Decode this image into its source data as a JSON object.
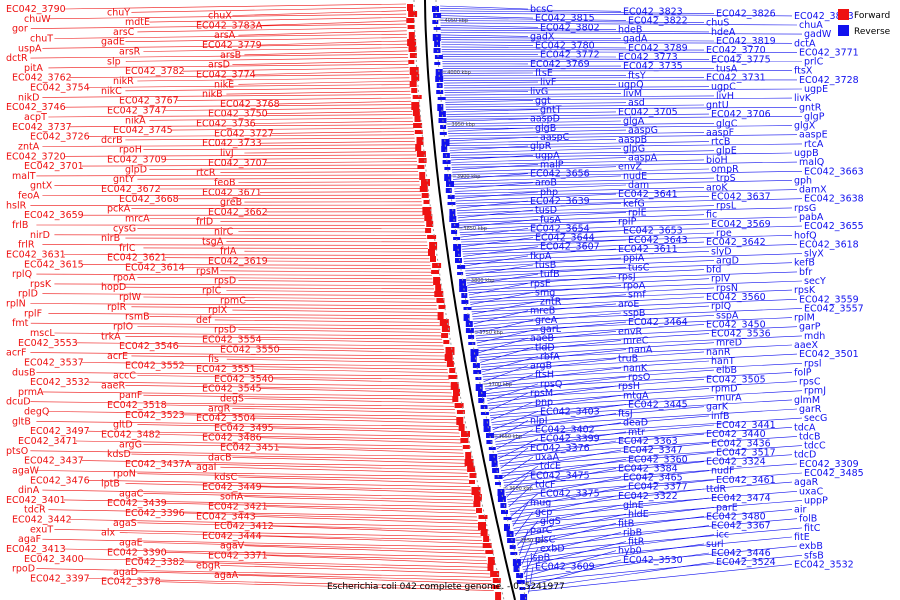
{
  "caption": "Escherichia coli 042 complete genome. - 0..5241977",
  "legend": [
    {
      "label": "Forward",
      "color": "#ee1111"
    },
    {
      "label": "Reverse",
      "color": "#1111ee"
    }
  ],
  "colors": {
    "forward": "#ee1111",
    "reverse": "#1111ee",
    "backbone": "#000000"
  },
  "ticks": [
    "4050 kbp",
    "4000 kbp",
    "3950 kbp",
    "3900 kbp",
    "3850 kbp",
    "3800 kbp",
    "3750 kbp",
    "3700 kbp",
    "3650 kbp",
    "3600 kbp",
    "3550 kbp"
  ],
  "forward_labels": [
    "EC042_3790",
    "chuY",
    "chuX",
    "chuW",
    "mdtE",
    "EC042_3783A",
    "gor",
    "arsC",
    "arsA",
    "chuT",
    "gadE",
    "EC042_3779",
    "uspA",
    "arsR",
    "arsB",
    "dctR",
    "slp",
    "arsD",
    "pitA",
    "EC042_3782",
    "EC042_3774",
    "EC042_3762",
    "nikR",
    "nikE",
    "EC042_3754",
    "nikC",
    "nikB",
    "nikD",
    "EC042_3767",
    "EC042_3768",
    "EC042_3746",
    "EC042_3747",
    "EC042_3750",
    "acpT",
    "nikA",
    "EC042_3736",
    "EC042_3737",
    "EC042_3745",
    "EC042_3727",
    "EC042_3726",
    "dcrB",
    "EC042_3733",
    "zntA",
    "rpoH",
    "livJ",
    "EC042_3720",
    "EC042_3709",
    "EC042_3707",
    "EC042_3701",
    "glpD",
    "rtcR",
    "malT",
    "gntY",
    "feoB",
    "gntX",
    "EC042_3672",
    "EC042_3671",
    "feoA",
    "EC042_3668",
    "greB",
    "hslR",
    "pckA",
    "EC042_3662",
    "EC042_3659",
    "mrcA",
    "frlD",
    "frlB",
    "cysG",
    "nirC",
    "nirD",
    "nirB",
    "tsgA",
    "frlR",
    "frlC",
    "frlA",
    "EC042_3631",
    "EC042_3621",
    "EC042_3619",
    "EC042_3615",
    "EC042_3614",
    "rpsM",
    "rplQ",
    "rpoA",
    "rpsD",
    "rpsK",
    "hopD",
    "rplC",
    "rplD",
    "rplW",
    "rpmC",
    "rplN",
    "rplR",
    "rplX",
    "rplF",
    "rsmB",
    "def",
    "fmt",
    "rplO",
    "rpsD",
    "mscL",
    "trkA",
    "EC042_3554",
    "EC042_3553",
    "EC042_3546",
    "EC042_3550",
    "acrF",
    "acrE",
    "fis",
    "EC042_3537",
    "EC042_3552",
    "EC042_3551",
    "dusB",
    "accC",
    "EC042_3540",
    "EC042_3532",
    "aaeR",
    "EC042_3545",
    "prmA",
    "panF",
    "degS",
    "dcuD",
    "EC042_3518",
    "argR",
    "degQ",
    "EC042_3523",
    "EC042_3504",
    "gltB",
    "gltD",
    "EC042_3495",
    "EC042_3497",
    "EC042_3482",
    "EC042_3486",
    "EC042_3471",
    "argG",
    "EC042_3451",
    "ptsO",
    "kdsD",
    "dacB",
    "EC042_3437",
    "EC042_3437A",
    "agaI",
    "agaW",
    "rpoN",
    "kdsC",
    "EC042_3476",
    "lptB",
    "EC042_3449",
    "dinA",
    "agaC",
    "sohA",
    "EC042_3401",
    "EC042_3439",
    "EC042_3421",
    "tdcR",
    "EC042_3396",
    "EC042_3443",
    "EC042_3442",
    "agaS",
    "EC042_3412",
    "exuT",
    "alx",
    "EC042_3444",
    "agaF",
    "agaE",
    "agaV",
    "EC042_3413",
    "EC042_3390",
    "EC042_3371",
    "EC042_3400",
    "EC042_3382",
    "ebgR",
    "rpoD",
    "agaD",
    "agaA",
    "EC042_3397",
    "EC042_3378"
  ],
  "reverse_labels": [
    "bcsC",
    "EC042_3823",
    "EC042_3826",
    "EC042_3813",
    "EC042_3815",
    "EC042_3822",
    "chuS",
    "chuA",
    "EC042_3802",
    "hdeB",
    "hdeA",
    "gadW",
    "gadX",
    "gadA",
    "EC042_3819",
    "dctA",
    "EC042_3780",
    "EC042_3789",
    "EC042_3770",
    "EC042_3771",
    "EC042_3772",
    "EC042_3773",
    "EC042_3775",
    "prlC",
    "EC042_3769",
    "EC042_3735",
    "tusA",
    "ftsX",
    "ftsE",
    "ftsY",
    "EC042_3731",
    "EC042_3728",
    "livF",
    "ugpQ",
    "ugpC",
    "ugpE",
    "livG",
    "livM",
    "livH",
    "livK",
    "ggt",
    "asd",
    "gntU",
    "gntR",
    "gntT",
    "EC042_3705",
    "EC042_3706",
    "glgP",
    "aaspD",
    "glgA",
    "glgC",
    "glgX",
    "glgB",
    "aaspG",
    "aaspF",
    "aaspE",
    "aaspC",
    "aaspB",
    "rtcB",
    "rtcA",
    "glpR",
    "glpG",
    "glpE",
    "ugpB",
    "ugpA",
    "aaspA",
    "bioH",
    "malQ",
    "malP",
    "envZ",
    "ompR",
    "EC042_3663",
    "EC042_3656",
    "nudE",
    "trpS",
    "gph",
    "aroB",
    "dam",
    "aroK",
    "damX",
    "php",
    "EC042_3641",
    "EC042_3637",
    "EC042_3638",
    "EC042_3639",
    "kefG",
    "rpsL",
    "rpsG",
    "tusD",
    "rplE",
    "fic",
    "pabA",
    "fusA",
    "rplP",
    "EC042_3569",
    "EC042_3655",
    "EC042_3654",
    "EC042_3653",
    "rpe",
    "hofQ",
    "EC042_3644",
    "EC042_3643",
    "EC042_3642",
    "EC042_3618",
    "EC042_3607",
    "EC042_3611",
    "slyD",
    "slyX",
    "fkpA",
    "ppiA",
    "argD",
    "kefB",
    "tusB",
    "tusC",
    "bfd",
    "bfr",
    "tufB",
    "rpsJ",
    "rplV",
    "secY",
    "rpsE",
    "rpoA",
    "rpsN",
    "rpsK",
    "smg",
    "smf",
    "EC042_3560",
    "EC042_3559",
    "zntR",
    "aroE",
    "rplQ",
    "EC042_3557",
    "mreB",
    "sspB",
    "sspA",
    "rplM",
    "greA",
    "EC042_3464",
    "EC042_3450",
    "garP",
    "garL",
    "envR",
    "EC042_3536",
    "mdh",
    "aaeB",
    "mreC",
    "mreD",
    "aaeX",
    "tldD",
    "nanA",
    "nanR",
    "EC042_3501",
    "rbfA",
    "truB",
    "hanT",
    "rpsl",
    "argB",
    "nanK",
    "elbB",
    "folP",
    "ftsH",
    "rpsO",
    "EC042_3505",
    "rpsC",
    "rpsQ",
    "rpsH",
    "rpmD",
    "rpmJ",
    "rpsM",
    "mtgA",
    "murA",
    "glmM",
    "pnp",
    "EC042_3445",
    "garK",
    "garR",
    "EC042_3403",
    "ftsJ",
    "infB",
    "secG",
    "nlpI",
    "deaD",
    "EC042_3441",
    "tdcA",
    "EC042_3402",
    "mtr",
    "EC042_3440",
    "tdcB",
    "EC042_3399",
    "EC042_3363",
    "EC042_3436",
    "tdcC",
    "EC042_3376",
    "EC042_3347",
    "EC042_3517",
    "tdcD",
    "uxaA",
    "EC042_3360",
    "EC042_3324",
    "EC042_3309",
    "tdcE",
    "EC042_3384",
    "nudF",
    "EC042_3485",
    "EC042_3475",
    "EC042_3465",
    "EC042_3461",
    "agaR",
    "tdcF",
    "EC042_3377",
    "ttdR",
    "uxaC",
    "EC042_3375",
    "EC042_3322",
    "EC042_3474",
    "uppP",
    "mug",
    "glnE",
    "parE",
    "air",
    "gcp",
    "hldE",
    "EC042_3480",
    "folB",
    "glgS",
    "fitB",
    "EC042_3367",
    "fitC",
    "parC",
    "ribB",
    "icc",
    "fitE",
    "plsC",
    "fitR",
    "surl",
    "exbB",
    "exbD",
    "hyb0",
    "EC042_3446",
    "sfsB",
    "ispB",
    "EC042_3530",
    "EC042_3524",
    "EC042_3532",
    "EC042_3609"
  ]
}
